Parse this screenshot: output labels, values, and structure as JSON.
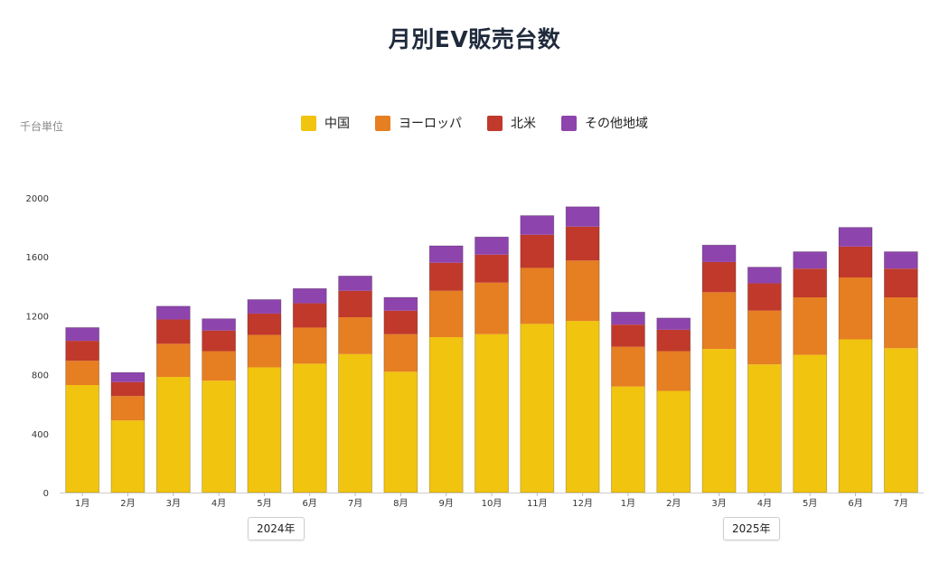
{
  "title": "月別EV販売台数",
  "unit_label": "千台単位",
  "year_labels": [
    "2024年",
    "2025年"
  ],
  "chart_data": {
    "type": "bar",
    "stacked": true,
    "title": "月別EV販売台数",
    "ylabel": "千台単位",
    "xlabel": "",
    "ylim": [
      0,
      2000
    ],
    "yticks": [
      0,
      400,
      800,
      1200,
      1600,
      2000
    ],
    "legend_position": "top",
    "grid": false,
    "categories": [
      "1月",
      "2月",
      "3月",
      "4月",
      "5月",
      "6月",
      "7月",
      "8月",
      "9月",
      "10月",
      "11月",
      "12月",
      "1月",
      "2月",
      "3月",
      "4月",
      "5月",
      "6月",
      "7月"
    ],
    "groups": [
      {
        "label": "2024年",
        "from": 0,
        "to": 11
      },
      {
        "label": "2025年",
        "from": 12,
        "to": 18
      }
    ],
    "series": [
      {
        "name": "中国",
        "color": "#f1c40f",
        "values": [
          730,
          490,
          785,
          760,
          850,
          875,
          940,
          820,
          1055,
          1075,
          1145,
          1165,
          720,
          690,
          975,
          870,
          935,
          1040,
          980
        ]
      },
      {
        "name": "ヨーロッパ",
        "color": "#e67e22",
        "values": [
          165,
          165,
          225,
          200,
          220,
          245,
          250,
          255,
          315,
          350,
          380,
          410,
          270,
          270,
          385,
          365,
          390,
          420,
          345
        ]
      },
      {
        "name": "北米",
        "color": "#c0392b",
        "values": [
          135,
          95,
          165,
          140,
          145,
          165,
          180,
          160,
          190,
          190,
          225,
          230,
          150,
          145,
          205,
          185,
          195,
          210,
          195
        ]
      },
      {
        "name": "その他地域",
        "color": "#8e44ad",
        "values": [
          90,
          65,
          90,
          80,
          95,
          100,
          100,
          90,
          115,
          120,
          130,
          135,
          85,
          80,
          115,
          110,
          115,
          130,
          115
        ]
      }
    ]
  }
}
